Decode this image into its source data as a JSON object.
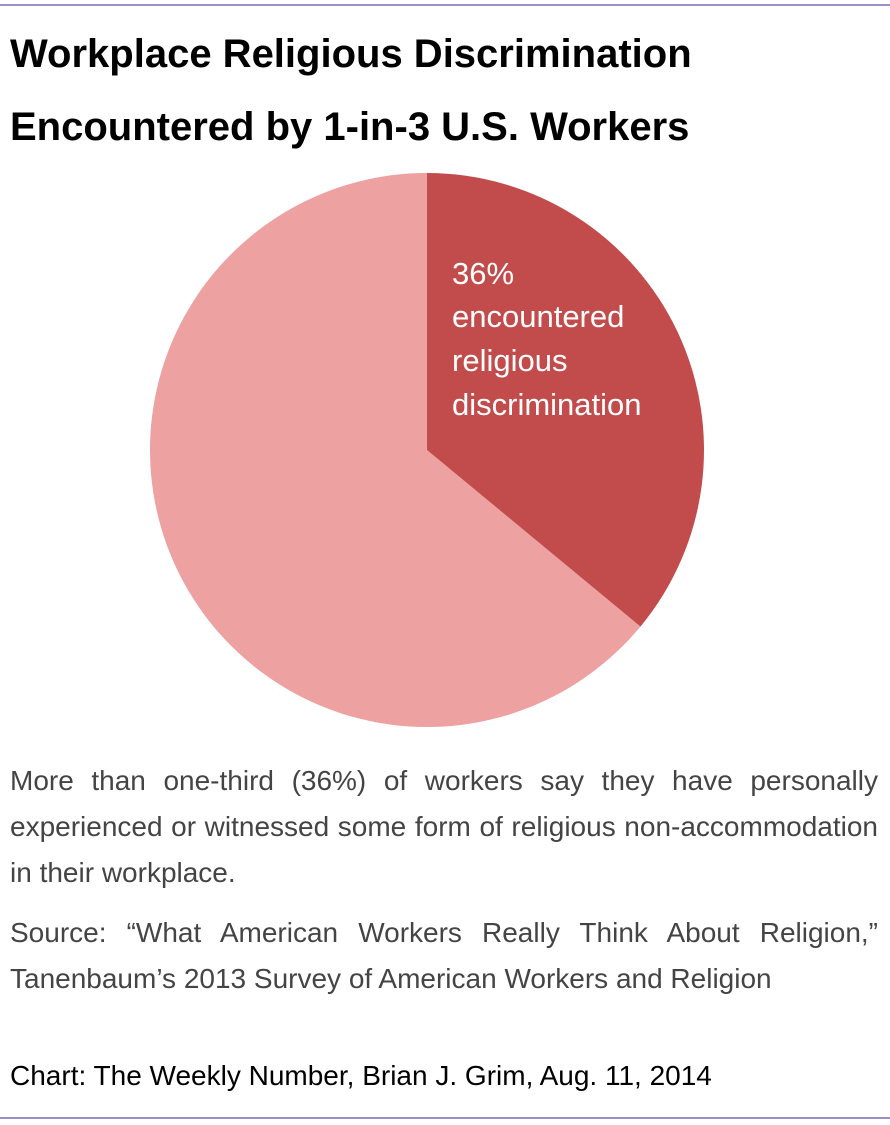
{
  "chart_data": {
    "type": "pie",
    "title": "Workplace Religious Discrimination Encountered by 1-in-3 U.S. Workers",
    "categories": [
      "encountered religious discrimination",
      null
    ],
    "values": [
      36,
      64
    ],
    "value_labels": [
      "36%",
      null
    ],
    "colors": [
      "#c24c4c",
      "#eda1a1"
    ],
    "description": "More than one-third (36%) of workers say they have personally experienced or witnessed some form of religious non-accommodation in their workplace.",
    "source": "Source: “What American Workers Really Think About Religion,” Tanenbaum’s 2013 Survey of American Workers and Religion",
    "credit": "Chart: The Weekly Number, Brian J. Grim, Aug. 11, 2014"
  }
}
